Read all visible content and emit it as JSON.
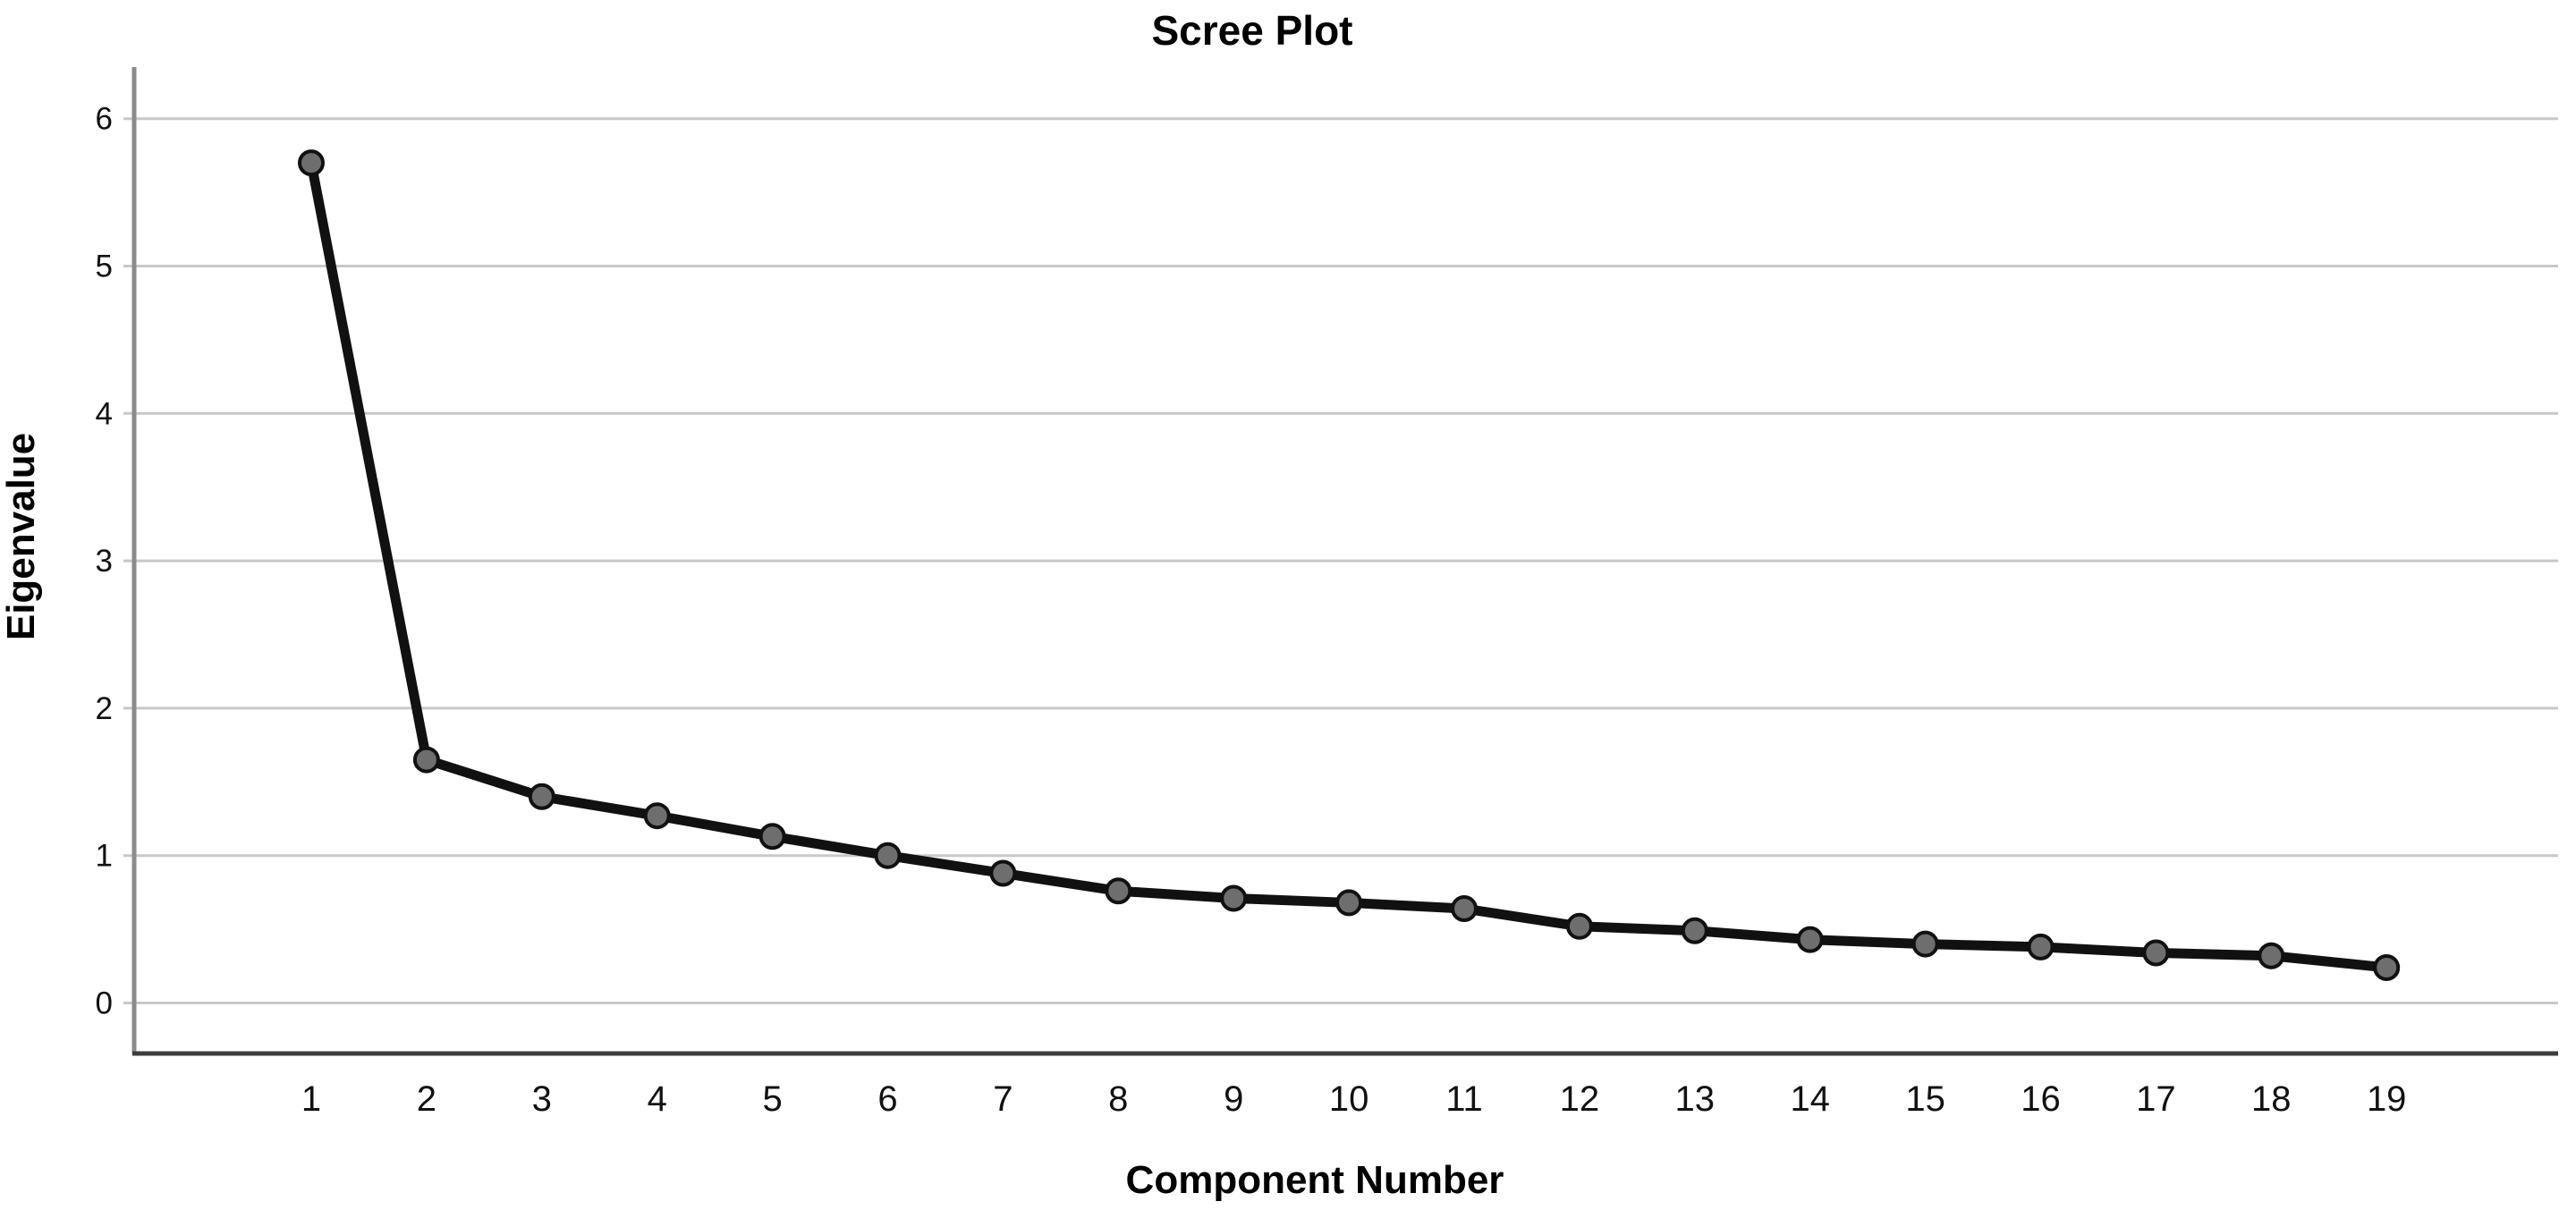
{
  "chart": {
    "title": "Scree Plot",
    "xlabel": "Component Number",
    "ylabel": "Eigenvalue"
  },
  "chart_data": {
    "type": "line",
    "title": "Scree Plot",
    "xlabel": "Component Number",
    "ylabel": "Eigenvalue",
    "x": [
      1,
      2,
      3,
      4,
      5,
      6,
      7,
      8,
      9,
      10,
      11,
      12,
      13,
      14,
      15,
      16,
      17,
      18,
      19
    ],
    "series": [
      {
        "name": "Eigenvalue",
        "values": [
          5.7,
          1.65,
          1.4,
          1.27,
          1.13,
          1.0,
          0.88,
          0.76,
          0.71,
          0.68,
          0.64,
          0.52,
          0.49,
          0.43,
          0.4,
          0.38,
          0.34,
          0.32,
          0.24
        ]
      }
    ],
    "x_tick_labels": [
      "1",
      "2",
      "3",
      "4",
      "5",
      "6",
      "7",
      "8",
      "9",
      "10",
      "11",
      "12",
      "13",
      "14",
      "15",
      "16",
      "17",
      "18",
      "19"
    ],
    "y_ticks": [
      0,
      1,
      2,
      3,
      4,
      5,
      6
    ],
    "ylim": [
      0,
      6.45
    ],
    "grid": "horizontal-only",
    "legend": "none",
    "marker": "circle",
    "colors": {
      "line": "#111111",
      "marker_fill": "#6e6e6e",
      "marker_stroke": "#111111",
      "gridline": "#c8c8c8",
      "y_axis": "#8b8b8b",
      "x_axis": "#3d3d3d",
      "text": "#000000",
      "background": "#ffffff"
    }
  }
}
